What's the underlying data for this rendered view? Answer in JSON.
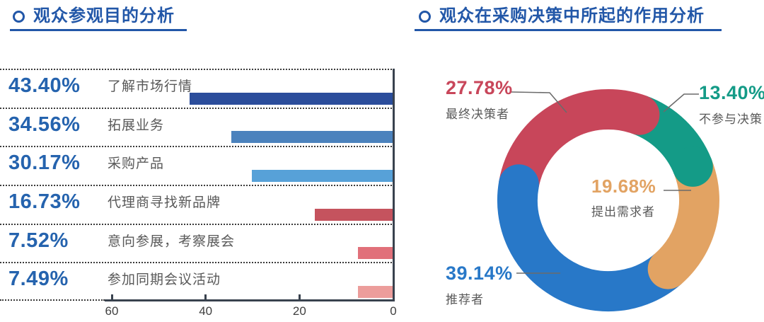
{
  "left_section": {
    "bullet": "",
    "title": "观众参观目的分析",
    "accent_color": "#2257A8"
  },
  "right_section": {
    "bullet": "",
    "title": "观众在采购决策中所起的作用分析",
    "accent_color": "#2257A8"
  },
  "chart_data": [
    {
      "type": "bar",
      "title": "观众参观目的分析",
      "orientation": "horizontal-zero-at-right",
      "xlabel": "",
      "ylabel": "",
      "axis": {
        "ticks": [
          "60",
          "40",
          "20",
          "0"
        ],
        "max": 60,
        "zero_at": "right",
        "grid": "dotted-row-separators"
      },
      "categories": [
        "了解市场行情",
        "拓展业务",
        "采购产品",
        "代理商寻找新品牌",
        "意向参展，考察展会",
        "参加同期会议活动"
      ],
      "values": [
        43.4,
        34.56,
        30.17,
        16.73,
        7.52,
        7.49
      ],
      "value_labels": [
        "43.40%",
        "34.56%",
        "30.17%",
        "16.73%",
        "7.52%",
        "7.49%"
      ],
      "bar_colors": [
        "#2B4D9B",
        "#4B82BD",
        "#57A1D8",
        "#C5535E",
        "#E1707A",
        "#EC9D9B"
      ],
      "value_label_color": "#2563AE",
      "category_color": "#595959"
    },
    {
      "type": "donut",
      "title": "观众在采购决策中所起的作用分析",
      "start_angle_deg": 20,
      "legend_position": "callout-labels-around-ring",
      "segments": [
        {
          "label": "不参与决策",
          "value": 13.4,
          "display": "13.40%",
          "color": "#149B87"
        },
        {
          "label": "提出需求者",
          "value": 19.68,
          "display": "19.68%",
          "color": "#E2A363"
        },
        {
          "label": "推荐者",
          "value": 39.14,
          "display": "39.14%",
          "color": "#2878C8"
        },
        {
          "label": "最终决策者",
          "value": 27.78,
          "display": "27.78%",
          "color": "#C8465A"
        }
      ],
      "label_color": "#595959"
    }
  ]
}
